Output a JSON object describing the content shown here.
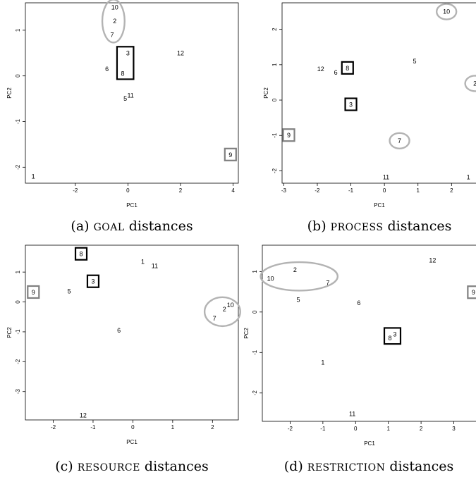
{
  "chart_data": [
    {
      "type": "scatter",
      "caption": {
        "prefix": "(a) ",
        "name": "GOAL",
        "suffix": " distances"
      },
      "xlabel": "PC1",
      "ylabel": "PC2",
      "xticks": [
        "-2",
        "0",
        "2",
        "4"
      ],
      "yticks": [
        "-2",
        "-1",
        "0",
        "1"
      ],
      "xlim": [
        -3.9,
        4.2
      ],
      "ylim": [
        -2.35,
        1.6
      ],
      "points": [
        {
          "label": "10",
          "x": -0.5,
          "y": 1.5
        },
        {
          "label": "2",
          "x": -0.5,
          "y": 1.2
        },
        {
          "label": "7",
          "x": -0.6,
          "y": 0.9
        },
        {
          "label": "3",
          "x": 0.0,
          "y": 0.5
        },
        {
          "label": "12",
          "x": 2.0,
          "y": 0.5
        },
        {
          "label": "6",
          "x": -0.8,
          "y": 0.15
        },
        {
          "label": "8",
          "x": -0.2,
          "y": 0.05
        },
        {
          "label": "11",
          "x": 0.1,
          "y": -0.43
        },
        {
          "label": "5",
          "x": -0.1,
          "y": -0.5
        },
        {
          "label": "9",
          "x": 3.9,
          "y": -1.73
        },
        {
          "label": "1",
          "x": -3.6,
          "y": -2.2
        }
      ],
      "highlighted": [
        {
          "shape": "ellipse",
          "members": [
            "10",
            "2",
            "7"
          ],
          "color": "#b3b3b3"
        },
        {
          "shape": "box",
          "members": [
            "3",
            "8"
          ],
          "color": "#000000"
        },
        {
          "shape": "box",
          "members": [
            "9"
          ],
          "color": "#808080"
        }
      ]
    },
    {
      "type": "scatter",
      "caption": {
        "prefix": "(b) ",
        "name": "PROCESS",
        "suffix": " distances"
      },
      "xlabel": "PC1",
      "ylabel": "PC2",
      "xticks": [
        "-3",
        "-2",
        "-1",
        "0",
        "1",
        "2"
      ],
      "yticks": [
        "-2",
        "-1",
        "0",
        "1",
        "2"
      ],
      "xlim": [
        -3.05,
        2.75
      ],
      "ylim": [
        -2.35,
        2.75
      ],
      "points": [
        {
          "label": "10",
          "x": 1.85,
          "y": 2.5
        },
        {
          "label": "5",
          "x": 0.9,
          "y": 1.1
        },
        {
          "label": "12",
          "x": -1.9,
          "y": 0.88
        },
        {
          "label": "8",
          "x": -1.1,
          "y": 0.9
        },
        {
          "label": "6",
          "x": -1.45,
          "y": 0.78
        },
        {
          "label": "2",
          "x": 2.7,
          "y": 0.47
        },
        {
          "label": "3",
          "x": -1.0,
          "y": -0.13
        },
        {
          "label": "9",
          "x": -2.85,
          "y": -1.0
        },
        {
          "label": "7",
          "x": 0.45,
          "y": -1.15
        },
        {
          "label": "11",
          "x": 0.05,
          "y": -2.18
        },
        {
          "label": "1",
          "x": 2.5,
          "y": -2.18
        }
      ],
      "highlighted": [
        {
          "shape": "ellipse",
          "members": [
            "10"
          ],
          "color": "#b3b3b3"
        },
        {
          "shape": "ellipse",
          "members": [
            "2"
          ],
          "color": "#b3b3b3"
        },
        {
          "shape": "ellipse",
          "members": [
            "7"
          ],
          "color": "#b3b3b3"
        },
        {
          "shape": "box",
          "members": [
            "8"
          ],
          "color": "#000000"
        },
        {
          "shape": "box",
          "members": [
            "3"
          ],
          "color": "#000000"
        },
        {
          "shape": "box",
          "members": [
            "9"
          ],
          "color": "#808080"
        }
      ]
    },
    {
      "type": "scatter",
      "caption": {
        "prefix": "(c) ",
        "name": "RESOURCE",
        "suffix": " distances"
      },
      "xlabel": "PC1",
      "ylabel": "PC2",
      "xticks": [
        "-2",
        "-1",
        "0",
        "1",
        "2"
      ],
      "yticks": [
        "-3",
        "-2",
        "-1",
        "0",
        "1"
      ],
      "xlim": [
        -2.7,
        2.65
      ],
      "ylim": [
        -3.95,
        1.9
      ],
      "points": [
        {
          "label": "8",
          "x": -1.3,
          "y": 1.6
        },
        {
          "label": "1",
          "x": 0.25,
          "y": 1.35
        },
        {
          "label": "11",
          "x": 0.55,
          "y": 1.2
        },
        {
          "label": "3",
          "x": -1.0,
          "y": 0.68
        },
        {
          "label": "5",
          "x": -1.6,
          "y": 0.35
        },
        {
          "label": "9",
          "x": -2.5,
          "y": 0.32
        },
        {
          "label": "10",
          "x": 2.45,
          "y": -0.1
        },
        {
          "label": "2",
          "x": 2.3,
          "y": -0.25
        },
        {
          "label": "7",
          "x": 2.05,
          "y": -0.55
        },
        {
          "label": "6",
          "x": -0.35,
          "y": -0.95
        },
        {
          "label": "12",
          "x": -1.25,
          "y": -3.8
        }
      ],
      "highlighted": [
        {
          "shape": "box",
          "members": [
            "8"
          ],
          "color": "#000000"
        },
        {
          "shape": "box",
          "members": [
            "3"
          ],
          "color": "#000000"
        },
        {
          "shape": "box",
          "members": [
            "9"
          ],
          "color": "#808080"
        },
        {
          "shape": "ellipse",
          "members": [
            "10",
            "2",
            "7"
          ],
          "color": "#b3b3b3"
        }
      ]
    },
    {
      "type": "scatter",
      "caption": {
        "prefix": "(d) ",
        "name": "RESTRICTION",
        "suffix": " distances"
      },
      "xlabel": "PC1",
      "ylabel": "PC2",
      "xticks": [
        "-2",
        "-1",
        "0",
        "1",
        "2",
        "3"
      ],
      "yticks": [
        "-2",
        "-1",
        "0",
        "1"
      ],
      "xlim": [
        -2.85,
        3.7
      ],
      "ylim": [
        -2.7,
        1.65
      ],
      "points": [
        {
          "label": "12",
          "x": 2.35,
          "y": 1.28
        },
        {
          "label": "2",
          "x": -1.85,
          "y": 1.04
        },
        {
          "label": "10",
          "x": -2.6,
          "y": 0.82
        },
        {
          "label": "7",
          "x": -0.85,
          "y": 0.72
        },
        {
          "label": "9",
          "x": 3.6,
          "y": 0.48
        },
        {
          "label": "5",
          "x": -1.75,
          "y": 0.3
        },
        {
          "label": "6",
          "x": 0.1,
          "y": 0.22
        },
        {
          "label": "3",
          "x": 1.2,
          "y": -0.55
        },
        {
          "label": "8",
          "x": 1.05,
          "y": -0.65
        },
        {
          "label": "1",
          "x": -1.0,
          "y": -1.25
        },
        {
          "label": "11",
          "x": -0.1,
          "y": -2.52
        }
      ],
      "highlighted": [
        {
          "shape": "ellipse",
          "members": [
            "2",
            "10",
            "7"
          ],
          "color": "#b3b3b3"
        },
        {
          "shape": "box",
          "members": [
            "9"
          ],
          "color": "#808080"
        },
        {
          "shape": "box",
          "members": [
            "3",
            "8"
          ],
          "color": "#000000"
        }
      ]
    }
  ]
}
